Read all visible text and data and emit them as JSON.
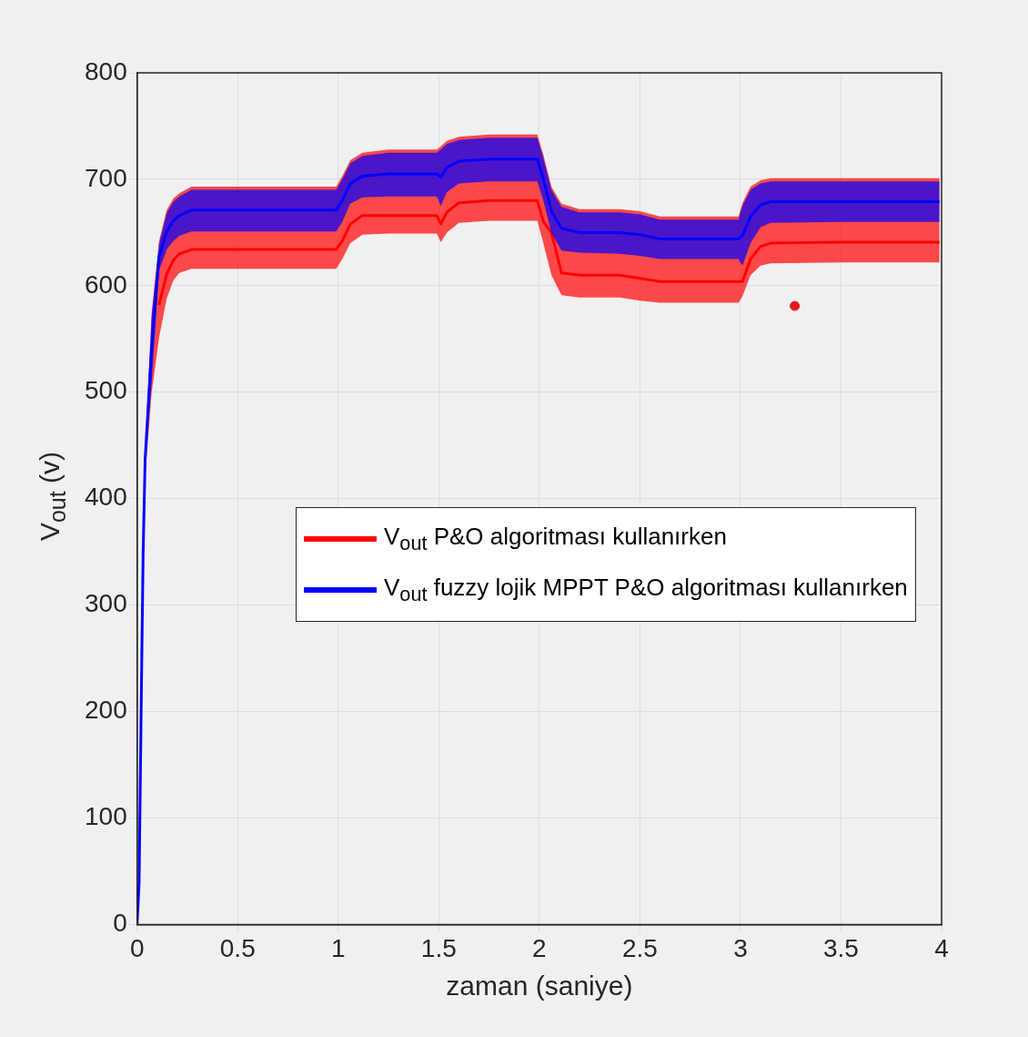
{
  "chart_data": {
    "type": "line",
    "xlabel": "zaman (saniye)",
    "ylabel": "V$_{out}$ (v)",
    "x": [
      0,
      0.01,
      0.02,
      0.03,
      0.04,
      0.072,
      0.109,
      0.147,
      0.18,
      0.21,
      0.27,
      0.5,
      0.75,
      0.99,
      1.02,
      1.06,
      1.12,
      1.25,
      1.49,
      1.51,
      1.54,
      1.6,
      1.75,
      1.99,
      2.02,
      2.06,
      2.11,
      2.2,
      2.4,
      2.5,
      2.6,
      2.8,
      2.99,
      3.01,
      3.05,
      3.1,
      3.15,
      3.5,
      3.99
    ],
    "series": [
      {
        "name": "V$_{out}$ P&O algoritması kullanırken",
        "color": "#ff0000",
        "lower": [
          0,
          40,
          200,
          350,
          420,
          499,
          551,
          588,
          605,
          612,
          616,
          616,
          616,
          616,
          625,
          640,
          648,
          649,
          649,
          641,
          650,
          659,
          661,
          661,
          640,
          610,
          591,
          589,
          589,
          586,
          584,
          584,
          584,
          590,
          610,
          619,
          621,
          622,
          622
        ],
        "upper": [
          0,
          40,
          200,
          350,
          448,
          574,
          642,
          671,
          682,
          687,
          693,
          693,
          693,
          693,
          703,
          718,
          725,
          728,
          728,
          731,
          736,
          740,
          742,
          742,
          723,
          693,
          677,
          672,
          672,
          670,
          665,
          665,
          665,
          678,
          693,
          699,
          701,
          701,
          701
        ],
        "values": [
          null,
          null,
          null,
          null,
          null,
          null,
          582,
          611,
          624,
          630,
          634,
          634,
          634,
          634,
          642,
          658,
          666,
          666,
          666,
          658,
          669,
          678,
          680,
          680,
          660,
          650,
          612,
          610,
          610,
          607,
          604,
          604,
          604,
          604,
          625,
          637,
          640,
          641,
          641
        ]
      },
      {
        "name": "V$_{out}$ fuzzy lojik MPPT P&O algoritması kullanırken",
        "color": "#0000ff",
        "lower": [
          0,
          40,
          200,
          350,
          430,
          508,
          614,
          634,
          642,
          647,
          651,
          651,
          651,
          651,
          660,
          677,
          683,
          684,
          684,
          675,
          688,
          696,
          698,
          698,
          680,
          650,
          633,
          631,
          630,
          628,
          625,
          625,
          625,
          619,
          640,
          655,
          659,
          660,
          660
        ],
        "upper": [
          0,
          40,
          200,
          350,
          445,
          571,
          639,
          668,
          679,
          684,
          690,
          690,
          690,
          690,
          700,
          715,
          722,
          725,
          725,
          728,
          733,
          737,
          739,
          739,
          720,
          690,
          674,
          669,
          669,
          667,
          662,
          662,
          662,
          675,
          690,
          696,
          698,
          698,
          698
        ],
        "values": [
          0,
          40,
          200,
          350,
          438,
          540,
          627,
          651,
          661,
          666,
          671,
          671,
          671,
          671,
          680,
          696,
          703,
          705,
          705,
          702,
          711,
          717,
          719,
          719,
          700,
          670,
          654,
          650,
          650,
          648,
          644,
          644,
          644,
          647,
          665,
          676,
          679,
          679,
          679
        ]
      },
      {
        "type": "scatter",
        "marker": "circle",
        "color": "#e31a1c",
        "x": [
          3.27
        ],
        "values": [
          581
        ]
      }
    ],
    "xlim": [
      0,
      4
    ],
    "xticks": [
      0,
      0.5,
      1,
      1.5,
      2,
      2.5,
      3,
      3.5,
      4
    ],
    "ylim": [
      0,
      800
    ],
    "yticks": [
      0,
      100,
      200,
      300,
      400,
      500,
      600,
      700,
      800
    ],
    "grid": true,
    "legend": "right",
    "marker": "none",
    "line_style": "solid"
  }
}
